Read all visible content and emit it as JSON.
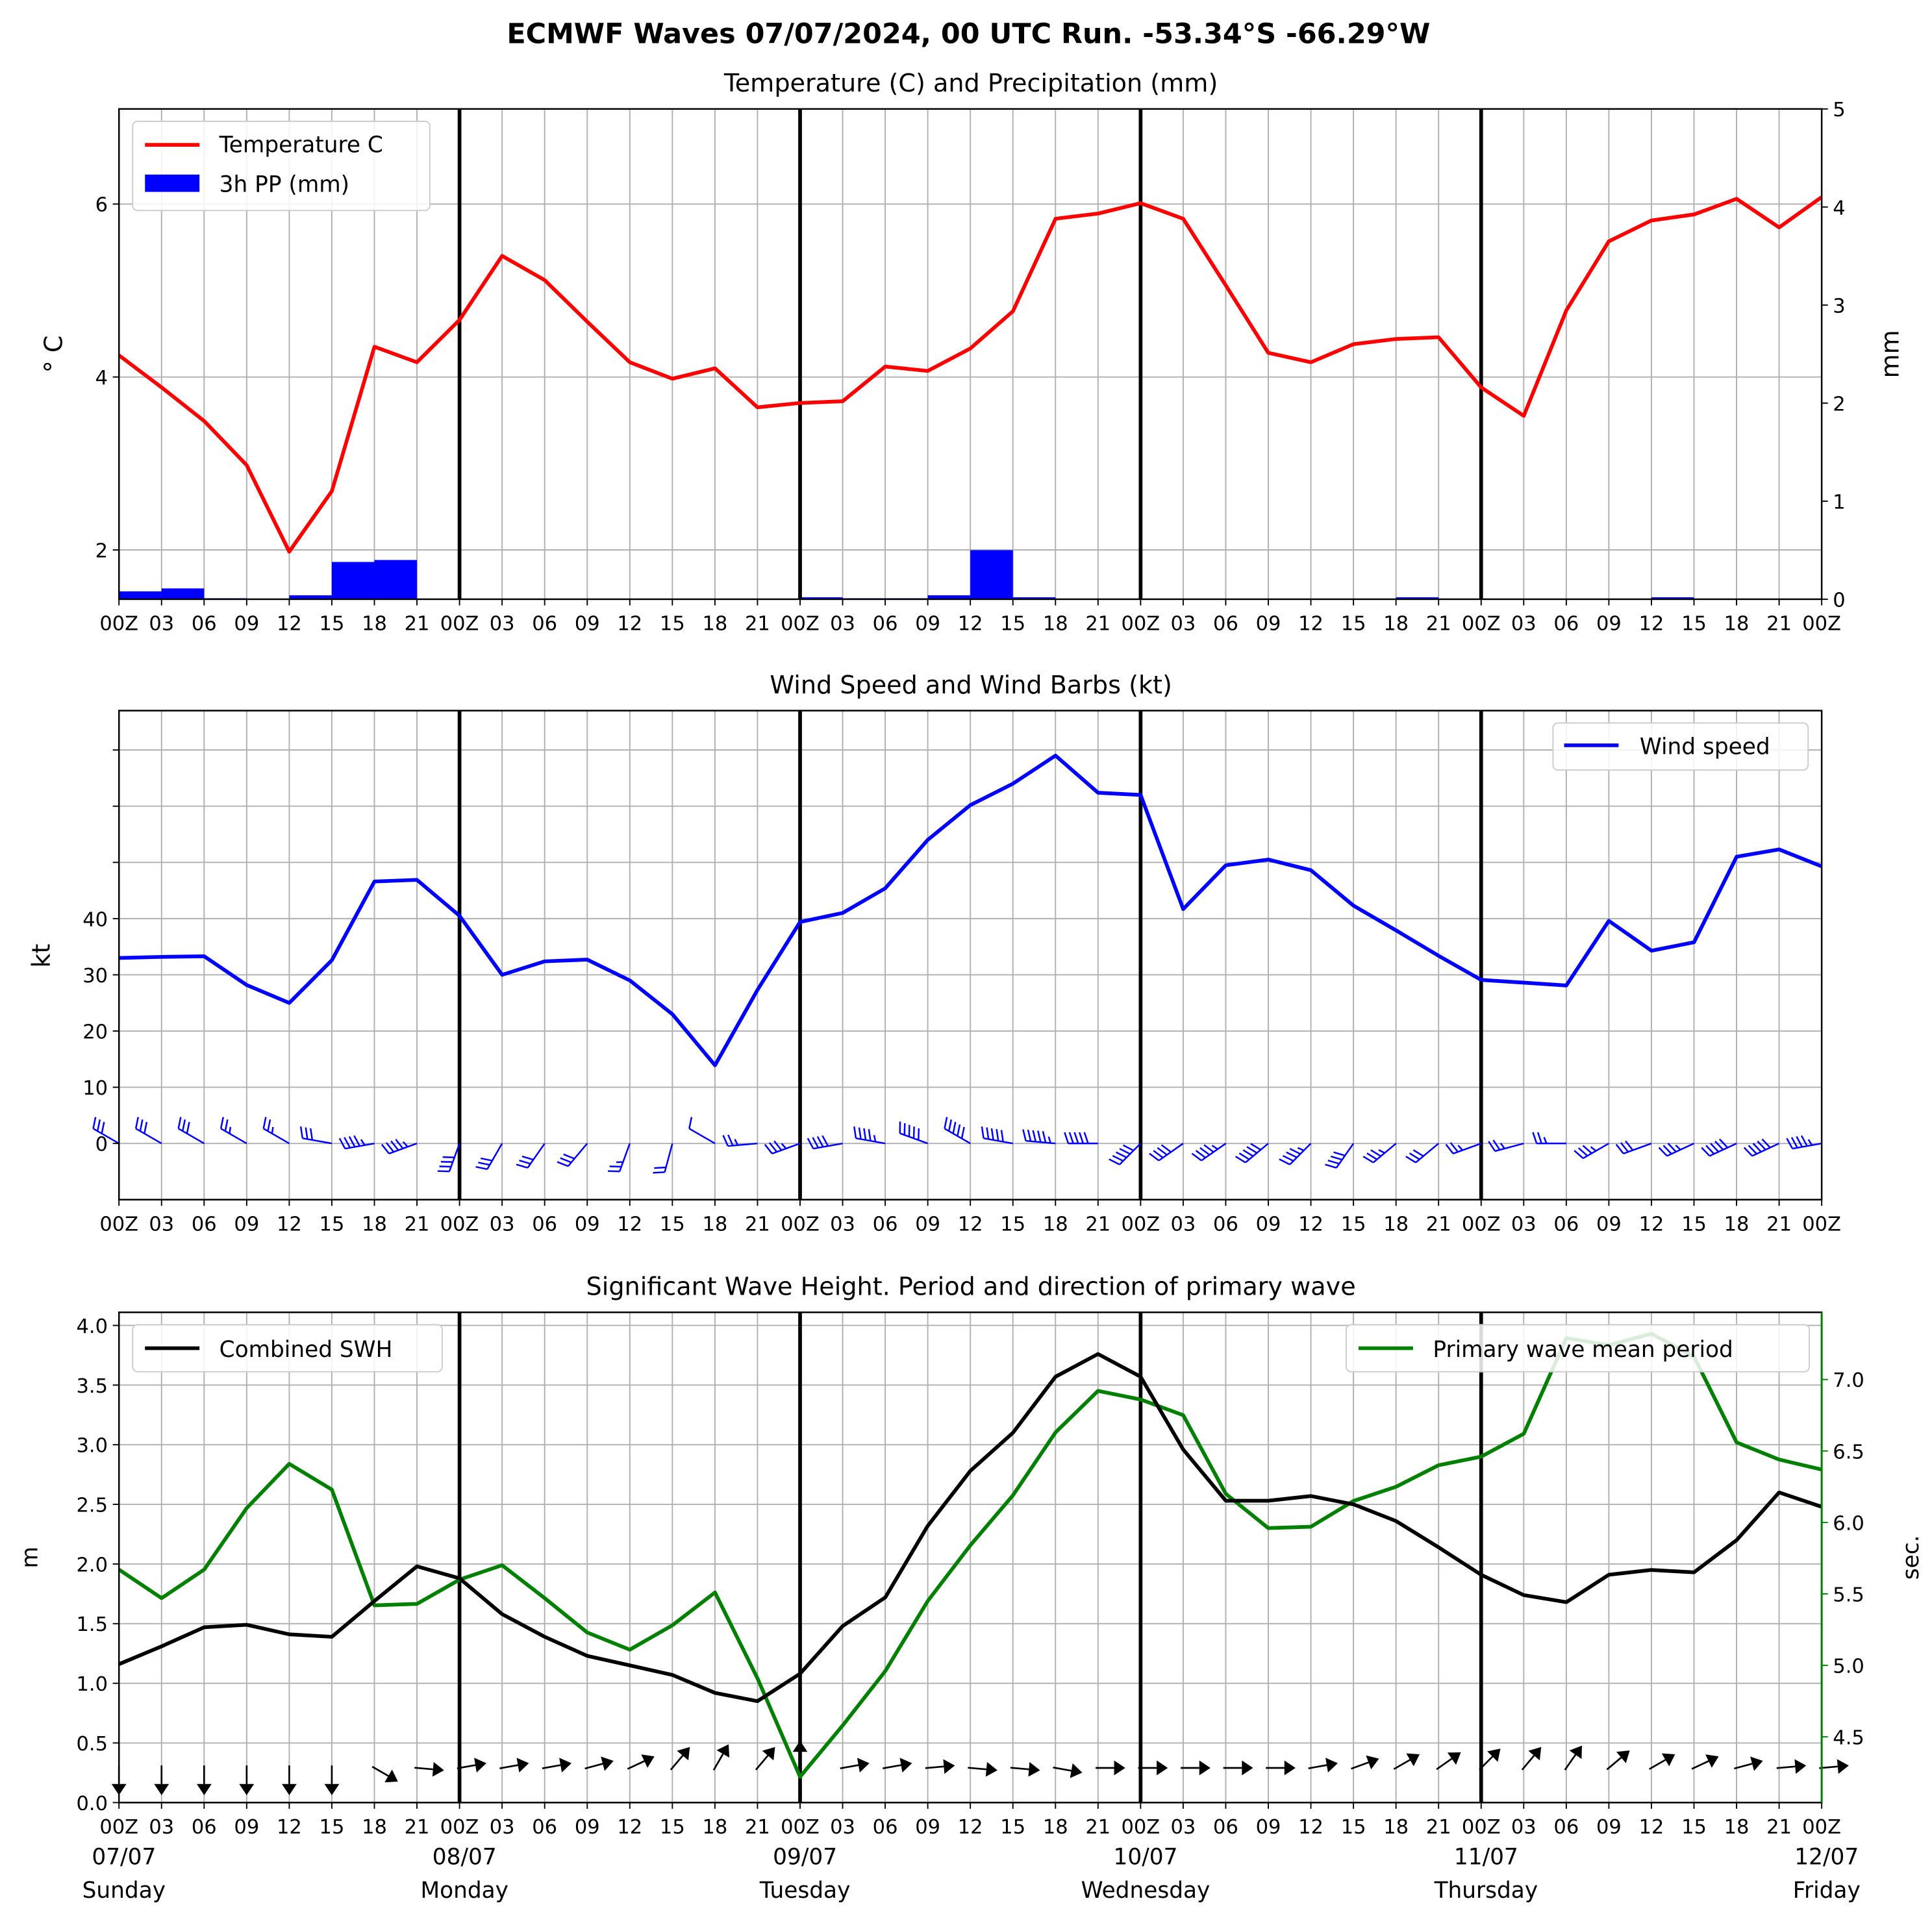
{
  "figure_title": "ECMWF Waves 07/07/2024, 00 UTC Run. -53.34°S -66.29°W",
  "chart_data": [
    {
      "type": "line",
      "title": "Temperature (C) and Precipitation (mm)",
      "ylabel": "$^\\circ$C",
      "ylabel_display": "° C",
      "ylabel_right": "mm",
      "ylim": [
        1.43,
        7.1
      ],
      "ylim_right": [
        0,
        5
      ],
      "yticks": [
        "2",
        "4",
        "6"
      ],
      "yticks_right": [
        "0",
        "1",
        "2",
        "3",
        "4",
        "5"
      ],
      "x_tick_labels": [
        "00Z",
        "03",
        "06",
        "09",
        "12",
        "15",
        "18",
        "21",
        "00Z",
        "03",
        "06",
        "09",
        "12",
        "15",
        "18",
        "21",
        "00Z",
        "03",
        "06",
        "09",
        "12",
        "15",
        "18",
        "21",
        "00Z",
        "03",
        "06",
        "09",
        "12",
        "15",
        "18",
        "21",
        "00Z",
        "03",
        "06",
        "09",
        "12",
        "15",
        "18",
        "21",
        "00Z"
      ],
      "legend": [
        "Temperature C",
        "3h PP (mm)"
      ],
      "legend_position": "upper-left",
      "grid": true,
      "colors": {
        "temperature": "#ff0000",
        "precip": "#0000ff"
      },
      "series": [
        {
          "name": "Temperature C",
          "values": [
            4.25,
            3.88,
            3.49,
            2.98,
            1.98,
            2.68,
            4.35,
            4.17,
            4.66,
            5.4,
            5.12,
            4.64,
            4.17,
            3.98,
            4.1,
            3.65,
            3.7,
            3.72,
            4.12,
            4.07,
            4.33,
            4.76,
            5.83,
            5.89,
            6.01,
            5.83,
            5.06,
            4.28,
            4.17,
            4.38,
            4.44,
            4.46,
            3.88,
            3.55,
            4.77,
            5.57,
            5.81,
            5.88,
            6.06,
            5.73,
            6.08
          ]
        },
        {
          "name": "3h PP (mm)",
          "values": [
            null,
            0.08,
            0.11,
            0.01,
            0,
            0.04,
            0.38,
            0.4,
            0,
            0,
            0,
            0,
            0,
            0,
            0,
            0,
            0,
            0.02,
            0.01,
            0.01,
            0.04,
            0.5,
            0.02,
            0,
            0,
            0,
            0,
            0,
            0,
            0,
            0,
            0.02,
            0,
            0,
            0,
            0,
            0,
            0.02,
            0,
            0,
            0
          ]
        }
      ]
    },
    {
      "type": "line",
      "title": "Wind Speed and Wind Barbs (kt)",
      "ylabel": "kt",
      "ylim": [
        -10,
        77
      ],
      "yticks": [
        "0",
        "10",
        "20",
        "30",
        "40"
      ],
      "x_tick_labels": [
        "00Z",
        "03",
        "06",
        "09",
        "12",
        "15",
        "18",
        "21",
        "00Z",
        "03",
        "06",
        "09",
        "12",
        "15",
        "18",
        "21",
        "00Z",
        "03",
        "06",
        "09",
        "12",
        "15",
        "18",
        "21",
        "00Z",
        "03",
        "06",
        "09",
        "12",
        "15",
        "18",
        "21",
        "00Z",
        "03",
        "06",
        "09",
        "12",
        "15",
        "18",
        "21",
        "00Z"
      ],
      "legend": [
        "Wind speed"
      ],
      "legend_position": "upper-right",
      "grid": true,
      "colors": {
        "wind": "#0000ff"
      },
      "series": [
        {
          "name": "Wind speed",
          "values": [
            33,
            33.2,
            33.3,
            28.2,
            25,
            32.6,
            46.6,
            46.9,
            40.5,
            30,
            32.4,
            32.7,
            29,
            23,
            13.9,
            27.3,
            39.4,
            41,
            45.4,
            54,
            60.2,
            64,
            69,
            62.4,
            62,
            41.7,
            49.5,
            50.5,
            48.6,
            42.3,
            37.9,
            33.4,
            29.1,
            28.6,
            28.1,
            39.6,
            34.3,
            35.8,
            51,
            52.3,
            49.3
          ]
        }
      ],
      "barb_directions_deg": [
        300,
        300,
        300,
        300,
        300,
        280,
        260,
        250,
        200,
        210,
        215,
        220,
        200,
        195,
        300,
        265,
        250,
        260,
        280,
        290,
        300,
        280,
        275,
        270,
        225,
        235,
        235,
        230,
        225,
        215,
        230,
        230,
        250,
        255,
        270,
        240,
        250,
        245,
        245,
        245,
        260
      ]
    },
    {
      "type": "line",
      "title": "Significant Wave Height. Period and direction of primary wave",
      "ylabel": "m",
      "ylabel_right": "sec.",
      "ylim": [
        0,
        4.11
      ],
      "ylim_right": [
        4.04,
        7.47
      ],
      "yticks": [
        "0.0",
        "0.5",
        "1.0",
        "1.5",
        "2.0",
        "2.5",
        "3.0",
        "3.5",
        "4.0"
      ],
      "yticks_right": [
        "4.5",
        "5.0",
        "5.5",
        "6.0",
        "6.5",
        "7.0"
      ],
      "x_tick_labels": [
        "00Z",
        "03",
        "06",
        "09",
        "12",
        "15",
        "18",
        "21",
        "00Z",
        "03",
        "06",
        "09",
        "12",
        "15",
        "18",
        "21",
        "00Z",
        "03",
        "06",
        "09",
        "12",
        "15",
        "18",
        "21",
        "00Z",
        "03",
        "06",
        "09",
        "12",
        "15",
        "18",
        "21",
        "00Z",
        "03",
        "06",
        "09",
        "12",
        "15",
        "18",
        "21",
        "00Z"
      ],
      "day_labels": [
        {
          "date": "07/07",
          "day": "Sunday"
        },
        {
          "date": "08/07",
          "day": "Monday"
        },
        {
          "date": "09/07",
          "day": "Tuesday"
        },
        {
          "date": "10/07",
          "day": "Wednesday"
        },
        {
          "date": "11/07",
          "day": "Thursday"
        },
        {
          "date": "12/07",
          "day": "Friday"
        }
      ],
      "legend": [
        "Combined SWH",
        "Primary wave mean period"
      ],
      "legend_positions": [
        "upper-left",
        "upper-right"
      ],
      "grid": true,
      "colors": {
        "swh": "#000000",
        "period": "#008000"
      },
      "series": [
        {
          "name": "Combined SWH",
          "values": [
            1.16,
            1.31,
            1.47,
            1.49,
            1.41,
            1.39,
            1.69,
            1.98,
            1.88,
            1.58,
            1.39,
            1.23,
            1.15,
            1.07,
            0.92,
            0.85,
            1.08,
            1.48,
            1.72,
            2.32,
            2.78,
            3.1,
            3.57,
            3.76,
            3.57,
            2.96,
            2.53,
            2.53,
            2.57,
            2.5,
            2.36,
            2.14,
            1.91,
            1.74,
            1.68,
            1.91,
            1.95,
            1.93,
            2.2,
            2.6,
            2.48
          ]
        },
        {
          "name": "Primary wave mean period",
          "values": [
            5.67,
            5.47,
            5.67,
            6.1,
            6.41,
            6.23,
            5.42,
            5.43,
            5.6,
            5.7,
            5.47,
            5.23,
            5.11,
            5.28,
            5.51,
            4.91,
            4.22,
            4.58,
            4.96,
            5.45,
            5.84,
            6.19,
            6.63,
            6.92,
            6.86,
            6.75,
            6.2,
            5.96,
            5.97,
            6.15,
            6.25,
            6.4,
            6.46,
            6.62,
            7.29,
            7.24,
            7.32,
            7.16,
            6.56,
            6.44,
            6.37
          ]
        }
      ],
      "wave_directions_deg": [
        180,
        180,
        180,
        180,
        180,
        180,
        120,
        95,
        80,
        80,
        80,
        75,
        65,
        40,
        30,
        40,
        0,
        80,
        80,
        85,
        95,
        95,
        100,
        90,
        90,
        90,
        90,
        90,
        80,
        70,
        60,
        55,
        45,
        40,
        35,
        50,
        60,
        65,
        75,
        85,
        85
      ]
    }
  ]
}
